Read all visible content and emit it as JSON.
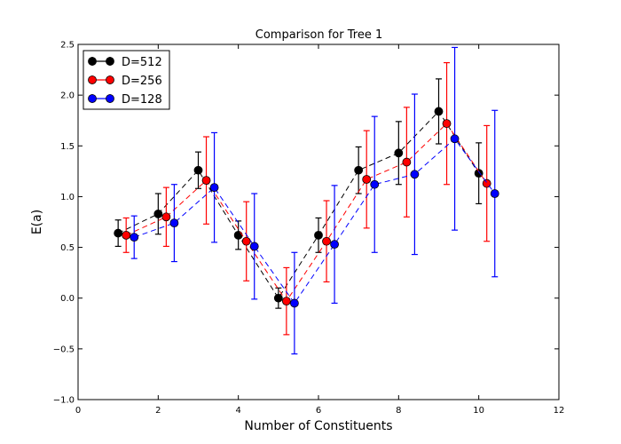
{
  "chart_data": {
    "type": "scatter",
    "title": "Comparison for Tree 1",
    "xlabel": "Number of Constituents",
    "ylabel": "E(a)",
    "xlim": [
      0,
      12
    ],
    "ylim": [
      -1.0,
      2.5
    ],
    "xticks": [
      0,
      2,
      4,
      6,
      8,
      10,
      12
    ],
    "xtick_labels": [
      "0",
      "2",
      "4",
      "6",
      "8",
      "10",
      "12"
    ],
    "yticks": [
      -1.0,
      -0.5,
      0.0,
      0.5,
      1.0,
      1.5,
      2.0,
      2.5
    ],
    "ytick_labels": [
      "−1.0",
      "−0.5",
      "0.0",
      "0.5",
      "1.0",
      "1.5",
      "2.0",
      "2.5"
    ],
    "grid": false,
    "legend_position": "top-left",
    "series": [
      {
        "name": "D=512",
        "color": "#000000",
        "x": [
          1,
          2,
          3,
          4,
          5,
          6,
          7,
          8,
          9,
          10
        ],
        "y": [
          0.64,
          0.83,
          1.26,
          0.62,
          0.0,
          0.62,
          1.26,
          1.43,
          1.84,
          1.23
        ],
        "err": [
          0.13,
          0.2,
          0.18,
          0.14,
          0.1,
          0.17,
          0.23,
          0.31,
          0.32,
          0.3
        ]
      },
      {
        "name": "D=256",
        "color": "#ff0000",
        "x": [
          1.2,
          2.2,
          3.2,
          4.2,
          5.2,
          6.2,
          7.2,
          8.2,
          9.2,
          10.2
        ],
        "y": [
          0.62,
          0.8,
          1.16,
          0.56,
          -0.03,
          0.56,
          1.17,
          1.34,
          1.72,
          1.13
        ],
        "err": [
          0.17,
          0.29,
          0.43,
          0.39,
          0.33,
          0.4,
          0.48,
          0.54,
          0.6,
          0.57
        ]
      },
      {
        "name": "D=128",
        "color": "#0000ff",
        "x": [
          1.4,
          2.4,
          3.4,
          4.4,
          5.4,
          6.4,
          7.4,
          8.4,
          9.4,
          10.4
        ],
        "y": [
          0.6,
          0.74,
          1.09,
          0.51,
          -0.05,
          0.53,
          1.12,
          1.22,
          1.57,
          1.03
        ],
        "err": [
          0.21,
          0.38,
          0.54,
          0.52,
          0.5,
          0.58,
          0.67,
          0.79,
          0.9,
          0.82
        ]
      }
    ]
  }
}
